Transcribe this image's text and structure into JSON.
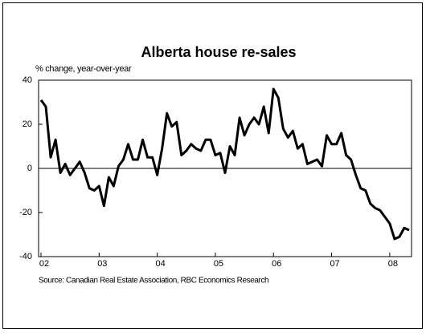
{
  "chart_data": {
    "type": "line",
    "title": "Alberta house re-sales",
    "subtitle": "% change, year-over-year",
    "source": "Source: Canadian Real Estate Association, RBC Economics Research",
    "x": [
      0,
      1,
      2,
      3,
      4,
      5,
      6,
      7,
      8,
      9,
      10,
      11,
      12,
      13,
      14,
      15,
      16,
      17,
      18,
      19,
      20,
      21,
      22,
      23,
      24,
      25,
      26,
      27,
      28,
      29,
      30,
      31,
      32,
      33,
      34,
      35,
      36,
      37,
      38,
      39,
      40,
      41,
      42,
      43,
      44,
      45,
      46,
      47,
      48,
      49,
      50,
      51,
      52,
      53,
      54,
      55,
      56,
      57,
      58,
      59,
      60,
      61,
      62,
      63,
      64,
      65,
      66,
      67,
      68,
      69,
      70,
      71,
      72,
      73,
      74,
      75,
      76
    ],
    "series": [
      {
        "name": "Alberta house re-sales",
        "color": "#000000",
        "values": [
          31,
          28,
          5,
          13,
          -2,
          2,
          -3,
          0,
          3,
          -2,
          -9,
          -10,
          -8,
          -17,
          -4,
          -8,
          1,
          4,
          11,
          4,
          4,
          13,
          5,
          5,
          -3,
          9,
          25,
          19,
          21,
          6,
          8,
          11,
          9,
          8,
          13,
          13,
          6,
          7,
          -2,
          10,
          6,
          23,
          15,
          20,
          23,
          20,
          28,
          16,
          36,
          32,
          18,
          14,
          17,
          9,
          11,
          2,
          3,
          4,
          1,
          15,
          11,
          11,
          16,
          6,
          4,
          -3,
          -9,
          -10,
          -16,
          -18,
          -19,
          -22,
          -25,
          -32,
          -31,
          -27,
          -28
        ]
      }
    ],
    "xlim": [
      -0.5,
      76.5
    ],
    "xticks": [
      {
        "value": 0,
        "label": "02"
      },
      {
        "value": 12,
        "label": "03"
      },
      {
        "value": 24,
        "label": "04"
      },
      {
        "value": 36,
        "label": "05"
      },
      {
        "value": 48,
        "label": "06"
      },
      {
        "value": 60,
        "label": "07"
      },
      {
        "value": 72,
        "label": "08"
      }
    ],
    "ylim": [
      -40,
      40
    ],
    "yticks": [
      -40,
      -20,
      0,
      20,
      40
    ]
  }
}
